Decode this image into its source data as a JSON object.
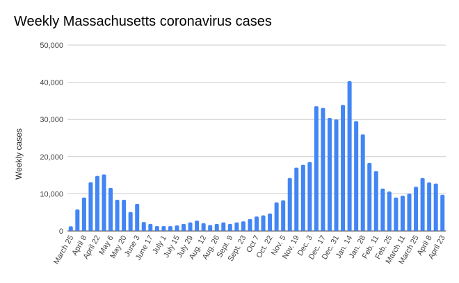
{
  "chart_data": {
    "type": "bar",
    "title": "Weekly Massachusetts coronavirus cases",
    "xlabel": "",
    "ylabel": "Weekly cases",
    "ylim": [
      0,
      50000
    ],
    "yticks": [
      0,
      10000,
      20000,
      30000,
      40000,
      50000
    ],
    "ytick_labels": [
      "0",
      "10,000",
      "20,000",
      "30,000",
      "40,000",
      "50,000"
    ],
    "grid": true,
    "bar_color": "#4285f4",
    "xtick_labels": [
      "March 25",
      "April 8",
      "April 22",
      "May 6",
      "May 20",
      "June 3",
      "June 17",
      "July 1",
      "July 15",
      "July 29",
      "Aug. 12",
      "Aug. 26",
      "Sept. 9",
      "Sept. 23",
      "Oct 7",
      "Oct. 22",
      "Nov. 5",
      "Nov. 19",
      "Dec. 3",
      "Dec. 17",
      "Dec. 31",
      "Jan. 14",
      "Jan. 28",
      "Feb. 11",
      "Feb. 25",
      "March 11",
      "March 25",
      "April 8",
      "April 23"
    ],
    "values": [
      1250,
      5800,
      9000,
      13100,
      14800,
      15200,
      11600,
      8400,
      8400,
      5100,
      7300,
      2400,
      1900,
      1300,
      1300,
      1300,
      1500,
      1900,
      2300,
      2800,
      2100,
      1600,
      1900,
      2300,
      1900,
      2300,
      2600,
      3200,
      3900,
      4200,
      4700,
      7700,
      8250,
      14250,
      17050,
      17800,
      18550,
      33550,
      33100,
      30400,
      30000,
      33900,
      40300,
      29550,
      26000,
      18300,
      16100,
      11400,
      10600,
      9000,
      9500,
      10050,
      11900,
      14250,
      13050,
      12750,
      9750
    ]
  }
}
